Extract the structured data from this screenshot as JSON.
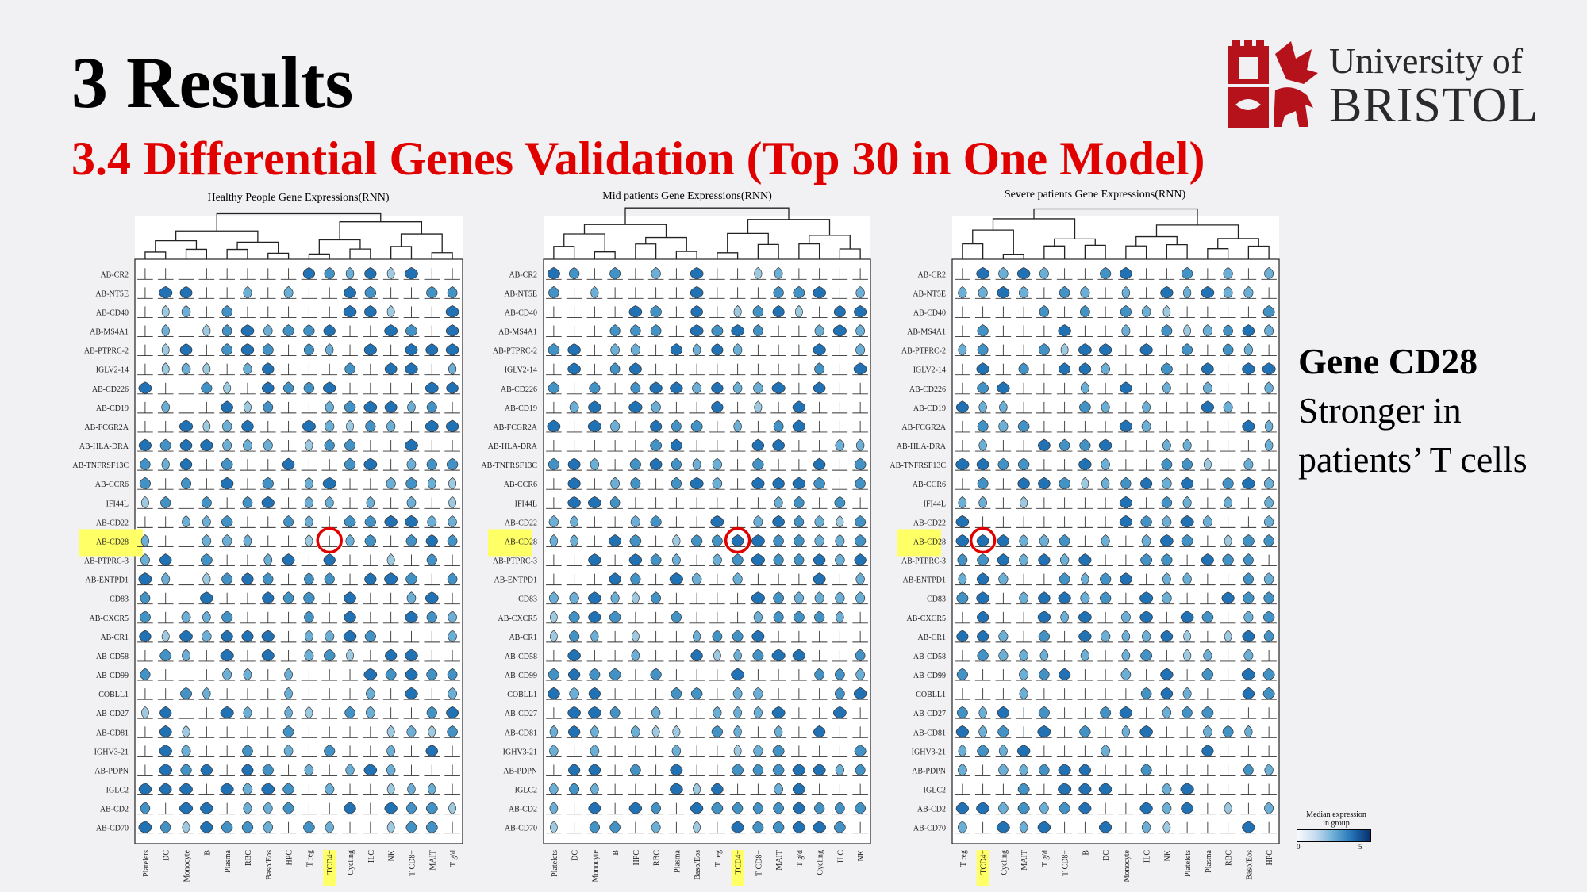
{
  "slide": {
    "title": "3 Results",
    "subtitle_bold": "3.4 Differential Genes Validation",
    "subtitle_rest": " (Top 30 in One Model)"
  },
  "logo": {
    "line1": "University of",
    "line2": "BRISTOL"
  },
  "side_note": {
    "heading": "Gene CD28",
    "line1": "Stronger in",
    "line2": "patients’ T cells"
  },
  "legend": {
    "title_line1": "Median expression",
    "title_line2": "in group",
    "min": "0",
    "max": "5"
  },
  "colors": {
    "highlight": "#ffff66",
    "circle": "#e00000",
    "violin_low": "#f7fbff",
    "violin_high": "#08306b"
  },
  "genes": [
    "AB-CR2",
    "AB-NT5E",
    "AB-CD40",
    "AB-MS4A1",
    "AB-PTPRC-2",
    "IGLV2-14",
    "AB-CD226",
    "AB-CD19",
    "AB-FCGR2A",
    "AB-HLA-DRA",
    "AB-TNFRSF13C",
    "AB-CCR6",
    "IFI44L",
    "AB-CD22",
    "AB-CD28",
    "AB-PTPRC-3",
    "AB-ENTPD1",
    "CD83",
    "AB-CXCR5",
    "AB-CR1",
    "AB-CD58",
    "AB-CD99",
    "COBLL1",
    "AB-CD27",
    "AB-CD81",
    "IGHV3-21",
    "AB-PDPN",
    "IGLC2",
    "AB-CD2",
    "AB-CD70"
  ],
  "highlight_gene": "AB-CD28",
  "chart_data": [
    {
      "type": "heatmap",
      "title": "Healthy People Gene Expressions(RNN)",
      "cell_types": [
        "Platelets",
        "DC",
        "Monocyte",
        "B",
        "Plasma",
        "RBC",
        "Baso/Eos",
        "HPC",
        "T reg",
        "TCD4+",
        "Cycling",
        "ILC",
        "NK",
        "T CD8+",
        "MAIT",
        "T g/d"
      ],
      "highlight_cell_type": "TCD4+",
      "circled": {
        "gene": "AB-CD28",
        "cell_type": "TCD4+"
      }
    },
    {
      "type": "heatmap",
      "title": "Mid patients Gene Expressions(RNN)",
      "cell_types": [
        "Platelets",
        "DC",
        "Monocyte",
        "B",
        "HPC",
        "RBC",
        "Plasma",
        "Baso/Eos",
        "T reg",
        "TCD4+",
        "T CD8+",
        "MAIT",
        "T g/d",
        "Cycling",
        "ILC",
        "NK"
      ],
      "highlight_cell_type": "TCD4+",
      "circled": {
        "gene": "AB-CD28",
        "cell_type": "TCD4+"
      }
    },
    {
      "type": "heatmap",
      "title": "Severe patients Gene Expressions(RNN)",
      "cell_types": [
        "T reg",
        "TCD4+",
        "Cycling",
        "MAIT",
        "T g/d",
        "T CD8+",
        "B",
        "DC",
        "Monocyte",
        "ILC",
        "NK",
        "Platelets",
        "Plasma",
        "RBC",
        "Baso/Eos",
        "HPC"
      ],
      "highlight_cell_type": "TCD4+",
      "circled": {
        "gene": "AB-CD28",
        "cell_type": "TCD4+"
      }
    }
  ]
}
